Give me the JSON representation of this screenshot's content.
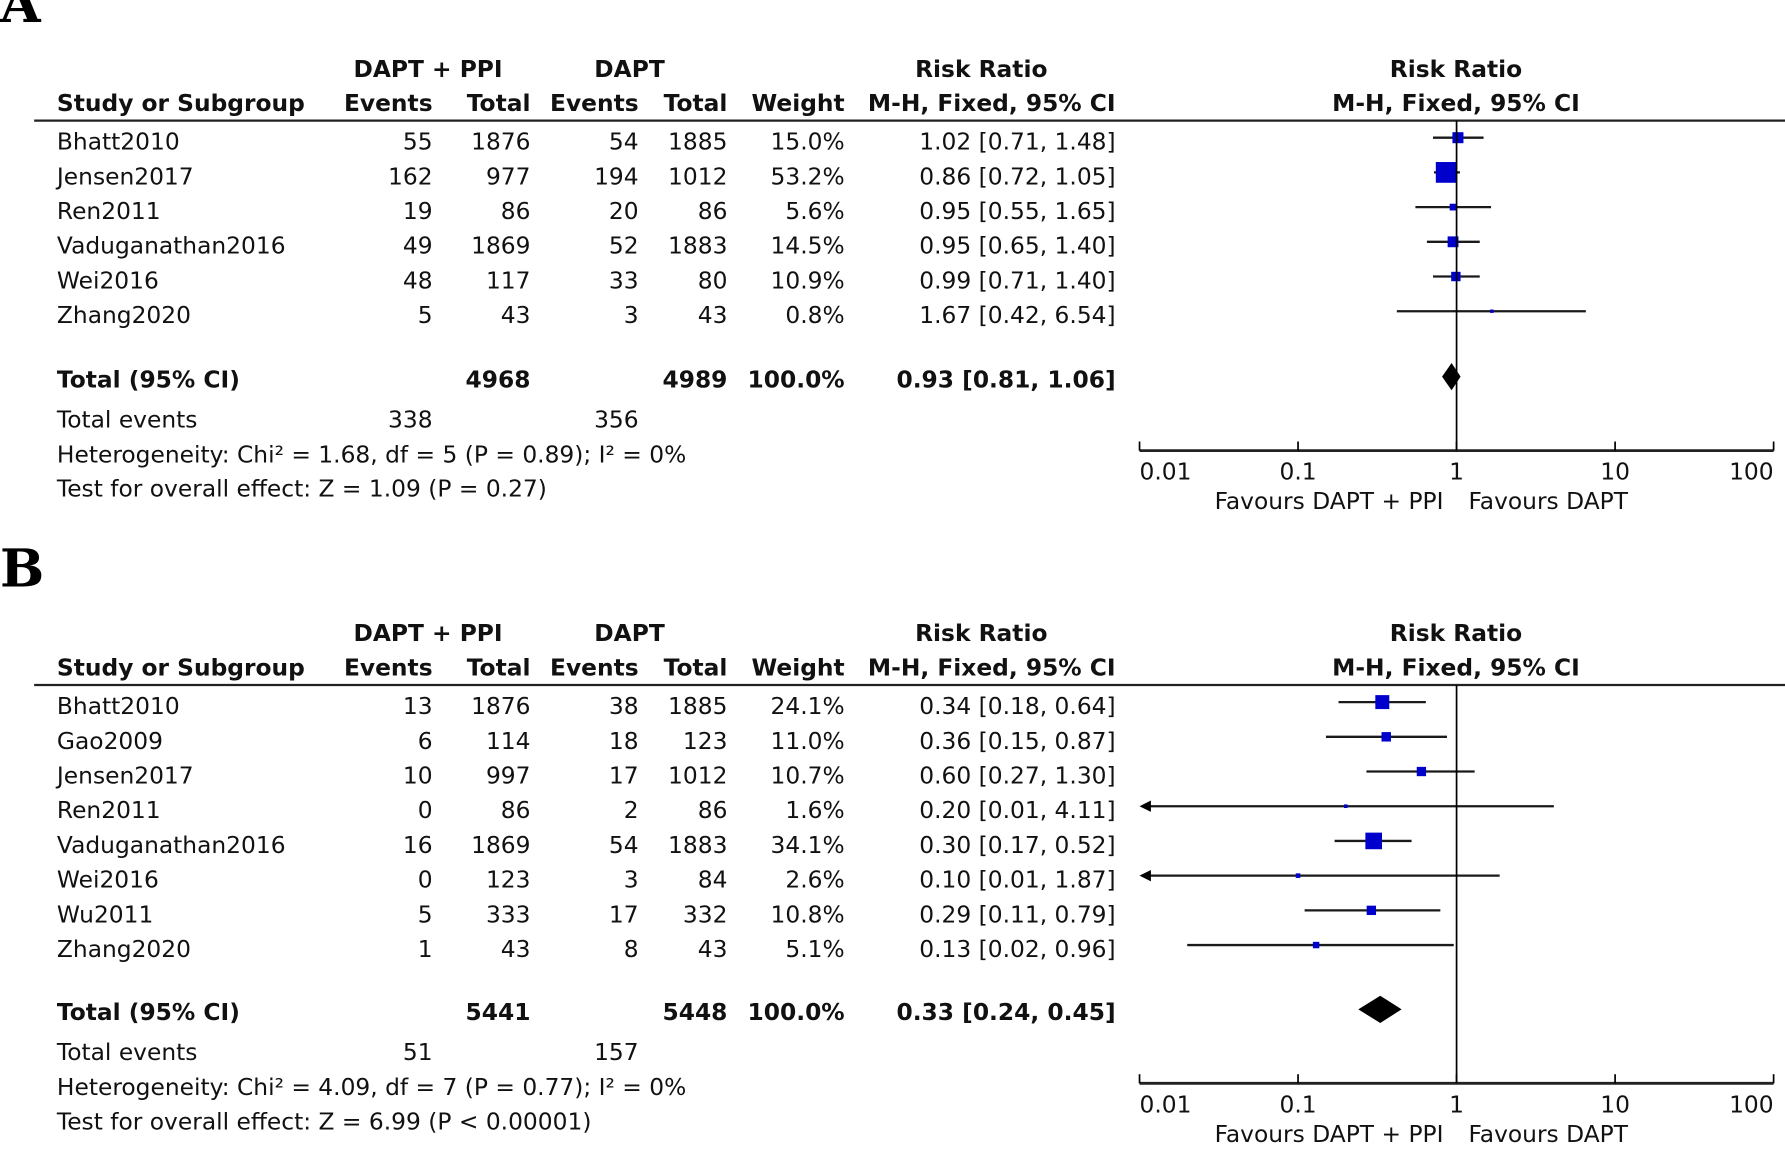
{
  "headers": {
    "group1": "DAPT + PPI",
    "group2": "DAPT",
    "study": "Study or Subgroup",
    "events": "Events",
    "total": "Total",
    "weight": "Weight",
    "risk_ratio": "Risk Ratio",
    "method": "M-H, Fixed, 95% CI"
  },
  "chart_data": [
    {
      "type": "forest",
      "panel_label": "A",
      "scale": "log",
      "xlim": [
        0.01,
        100
      ],
      "ticks": [
        "0.01",
        "0.1",
        "1",
        "10",
        "100"
      ],
      "tick_values": [
        0.01,
        0.1,
        1,
        10,
        100
      ],
      "favours_left": "Favours DAPT + PPI",
      "favours_right": "Favours DAPT",
      "studies": [
        {
          "name": "Bhatt2010",
          "e1": "55",
          "t1": "1876",
          "e2": "54",
          "t2": "1885",
          "weight": "15.0%",
          "w": 15.0,
          "ci_text": "1.02 [0.71, 1.48]",
          "rr": 1.02,
          "lo": 0.71,
          "hi": 1.48
        },
        {
          "name": "Jensen2017",
          "e1": "162",
          "t1": "977",
          "e2": "194",
          "t2": "1012",
          "weight": "53.2%",
          "w": 53.2,
          "ci_text": "0.86 [0.72, 1.05]",
          "rr": 0.86,
          "lo": 0.72,
          "hi": 1.05
        },
        {
          "name": "Ren2011",
          "e1": "19",
          "t1": "86",
          "e2": "20",
          "t2": "86",
          "weight": "5.6%",
          "w": 5.6,
          "ci_text": "0.95 [0.55, 1.65]",
          "rr": 0.95,
          "lo": 0.55,
          "hi": 1.65
        },
        {
          "name": "Vaduganathan2016",
          "e1": "49",
          "t1": "1869",
          "e2": "52",
          "t2": "1883",
          "weight": "14.5%",
          "w": 14.5,
          "ci_text": "0.95 [0.65, 1.40]",
          "rr": 0.95,
          "lo": 0.65,
          "hi": 1.4
        },
        {
          "name": "Wei2016",
          "e1": "48",
          "t1": "117",
          "e2": "33",
          "t2": "80",
          "weight": "10.9%",
          "w": 10.9,
          "ci_text": "0.99 [0.71, 1.40]",
          "rr": 0.99,
          "lo": 0.71,
          "hi": 1.4
        },
        {
          "name": "Zhang2020",
          "e1": "5",
          "t1": "43",
          "e2": "3",
          "t2": "43",
          "weight": "0.8%",
          "w": 0.8,
          "ci_text": "1.67 [0.42, 6.54]",
          "rr": 1.67,
          "lo": 0.42,
          "hi": 6.54
        }
      ],
      "total": {
        "label": "Total (95% CI)",
        "t1": "4968",
        "t2": "4989",
        "weight": "100.0%",
        "ci_text": "0.93 [0.81, 1.06]",
        "rr": 0.93,
        "lo": 0.81,
        "hi": 1.06
      },
      "total_events": {
        "label": "Total events",
        "e1": "338",
        "e2": "356"
      },
      "heterogeneity": "Heterogeneity: Chi² = 1.68, df = 5 (P = 0.89); I² = 0%",
      "overall_effect": "Test for overall effect: Z = 1.09 (P = 0.27)"
    },
    {
      "type": "forest",
      "panel_label": "B",
      "scale": "log",
      "xlim": [
        0.01,
        100
      ],
      "ticks": [
        "0.01",
        "0.1",
        "1",
        "10",
        "100"
      ],
      "tick_values": [
        0.01,
        0.1,
        1,
        10,
        100
      ],
      "favours_left": "Favours DAPT + PPI",
      "favours_right": "Favours DAPT",
      "studies": [
        {
          "name": "Bhatt2010",
          "e1": "13",
          "t1": "1876",
          "e2": "38",
          "t2": "1885",
          "weight": "24.1%",
          "w": 24.1,
          "ci_text": "0.34 [0.18, 0.64]",
          "rr": 0.34,
          "lo": 0.18,
          "hi": 0.64
        },
        {
          "name": "Gao2009",
          "e1": "6",
          "t1": "114",
          "e2": "18",
          "t2": "123",
          "weight": "11.0%",
          "w": 11.0,
          "ci_text": "0.36 [0.15, 0.87]",
          "rr": 0.36,
          "lo": 0.15,
          "hi": 0.87
        },
        {
          "name": "Jensen2017",
          "e1": "10",
          "t1": "997",
          "e2": "17",
          "t2": "1012",
          "weight": "10.7%",
          "w": 10.7,
          "ci_text": "0.60 [0.27, 1.30]",
          "rr": 0.6,
          "lo": 0.27,
          "hi": 1.3
        },
        {
          "name": "Ren2011",
          "e1": "0",
          "t1": "86",
          "e2": "2",
          "t2": "86",
          "weight": "1.6%",
          "w": 1.6,
          "ci_text": "0.20 [0.01, 4.11]",
          "rr": 0.2,
          "lo": 0.01,
          "hi": 4.11
        },
        {
          "name": "Vaduganathan2016",
          "e1": "16",
          "t1": "1869",
          "e2": "54",
          "t2": "1883",
          "weight": "34.1%",
          "w": 34.1,
          "ci_text": "0.30 [0.17, 0.52]",
          "rr": 0.3,
          "lo": 0.17,
          "hi": 0.52
        },
        {
          "name": "Wei2016",
          "e1": "0",
          "t1": "123",
          "e2": "3",
          "t2": "84",
          "weight": "2.6%",
          "w": 2.6,
          "ci_text": "0.10 [0.01, 1.87]",
          "rr": 0.1,
          "lo": 0.01,
          "hi": 1.87
        },
        {
          "name": "Wu2011",
          "e1": "5",
          "t1": "333",
          "e2": "17",
          "t2": "332",
          "weight": "10.8%",
          "w": 10.8,
          "ci_text": "0.29 [0.11, 0.79]",
          "rr": 0.29,
          "lo": 0.11,
          "hi": 0.79
        },
        {
          "name": "Zhang2020",
          "e1": "1",
          "t1": "43",
          "e2": "8",
          "t2": "43",
          "weight": "5.1%",
          "w": 5.1,
          "ci_text": "0.13 [0.02, 0.96]",
          "rr": 0.13,
          "lo": 0.02,
          "hi": 0.96
        }
      ],
      "total": {
        "label": "Total (95% CI)",
        "t1": "5441",
        "t2": "5448",
        "weight": "100.0%",
        "ci_text": "0.33 [0.24, 0.45]",
        "rr": 0.33,
        "lo": 0.24,
        "hi": 0.45
      },
      "total_events": {
        "label": "Total events",
        "e1": "51",
        "e2": "157"
      },
      "heterogeneity": "Heterogeneity: Chi² = 4.09, df = 7 (P = 0.77); I² = 0%",
      "overall_effect": "Test for overall effect: Z = 6.99 (P < 0.00001)"
    }
  ],
  "colors": {
    "square": "#0000cc",
    "line": "#000000",
    "ci": "#1a1a1a"
  }
}
